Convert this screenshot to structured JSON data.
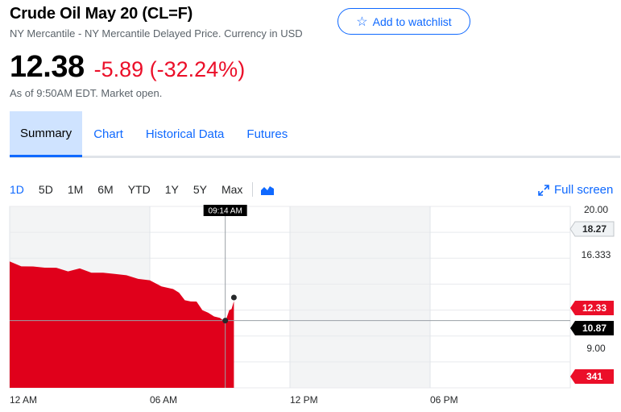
{
  "header": {
    "title": "Crude Oil May 20 (CL=F)",
    "subtitle": "NY Mercantile - NY Mercantile Delayed Price. Currency in USD",
    "watchlist_label": "Add to watchlist",
    "watchlist_icon": "star-outline-icon"
  },
  "quote": {
    "price": "12.38",
    "change": "-5.89 (-32.24%)",
    "as_of": "As of 9:50AM EDT. Market open."
  },
  "tabs": [
    {
      "label": "Summary",
      "active": true
    },
    {
      "label": "Chart",
      "active": false
    },
    {
      "label": "Historical Data",
      "active": false
    },
    {
      "label": "Futures",
      "active": false
    }
  ],
  "ranges": [
    "1D",
    "5D",
    "1M",
    "6M",
    "YTD",
    "1Y",
    "5Y",
    "Max"
  ],
  "active_range": "1D",
  "fullscreen_label": "Full screen",
  "colors": {
    "accent": "#0f69ff",
    "negative": "#eb0f29",
    "chart_fill": "#e0001b",
    "text_muted": "#5b636a"
  },
  "chart_data": {
    "type": "area",
    "x_tick_labels": [
      "12 AM",
      "06 AM",
      "12 PM",
      "06 PM"
    ],
    "y_tick_labels": [
      "20.00",
      "16.333",
      "9.00"
    ],
    "ylim": [
      5.5,
      20.0
    ],
    "price_series": {
      "x_hours": [
        0,
        0.5,
        1,
        1.5,
        2,
        2.5,
        3,
        3.5,
        4,
        4.5,
        5,
        5.5,
        6,
        6.5,
        7,
        7.25,
        7.5,
        7.75,
        8,
        8.25,
        8.5,
        8.75,
        9,
        9.23,
        9.4,
        9.5,
        9.6
      ],
      "y": [
        15.5,
        15.3,
        15.1,
        15.2,
        15.0,
        14.9,
        14.95,
        14.8,
        14.6,
        14.7,
        14.4,
        14.3,
        14.0,
        13.7,
        13.3,
        13.2,
        12.4,
        12.5,
        12.3,
        11.8,
        11.4,
        11.3,
        11.0,
        10.87,
        11.6,
        11.9,
        12.33
      ]
    },
    "crosshair": {
      "time": "09:14 AM",
      "value": "10.87"
    },
    "badges": [
      {
        "label": "18.27",
        "value": 18.27,
        "kind": "previous-close"
      },
      {
        "label": "12.33",
        "value": 12.33,
        "kind": "current"
      },
      {
        "label": "10.87",
        "value": 10.87,
        "kind": "crosshair"
      },
      {
        "label": "341",
        "kind": "volume"
      }
    ],
    "session_shading": true,
    "grid": true
  }
}
